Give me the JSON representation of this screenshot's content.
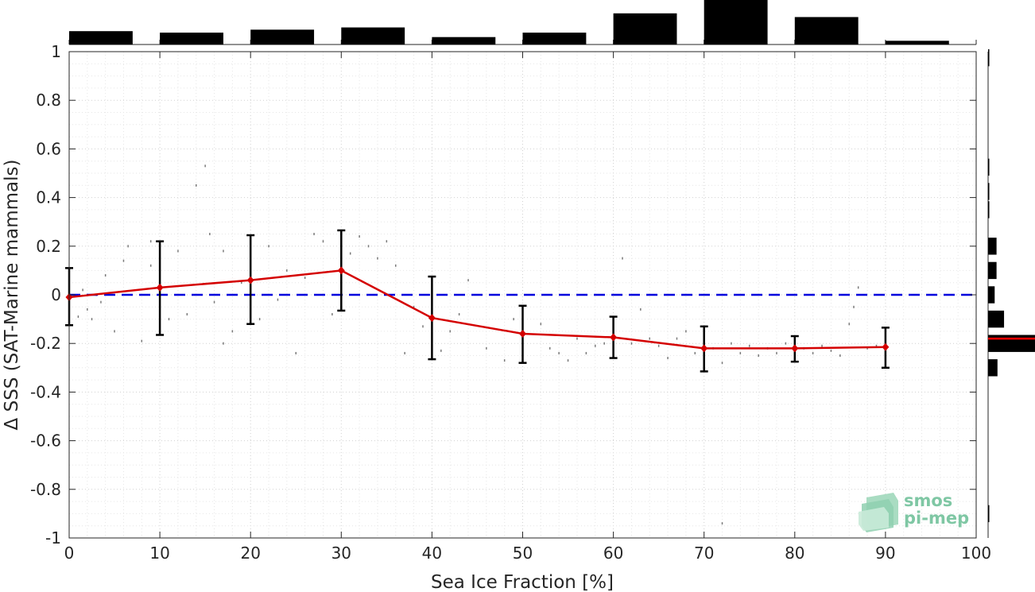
{
  "chart_data": {
    "type": "line",
    "xlabel": "Sea Ice Fraction [%]",
    "ylabel": "Δ SSS (SAT-Marine mammals)",
    "xlim": [
      0,
      100
    ],
    "ylim": [
      -1,
      1
    ],
    "x_ticks": [
      "0",
      "10",
      "20",
      "30",
      "40",
      "50",
      "60",
      "70",
      "80",
      "90",
      "100"
    ],
    "y_ticks": [
      "-1",
      "-0.8",
      "-0.6",
      "-0.4",
      "-0.2",
      "0",
      "0.2",
      "0.4",
      "0.6",
      "0.8",
      "1"
    ],
    "grid": true,
    "series": [
      {
        "x": [
          0,
          10,
          20,
          30,
          40,
          50,
          60,
          70,
          80,
          90
        ],
        "y": [
          -0.01,
          0.03,
          0.06,
          0.1,
          -0.095,
          -0.16,
          -0.175,
          -0.22,
          -0.22,
          -0.215
        ],
        "err_low": [
          -0.125,
          -0.165,
          -0.12,
          -0.065,
          -0.265,
          -0.28,
          -0.26,
          -0.315,
          -0.275,
          -0.3
        ],
        "err_high": [
          0.11,
          0.22,
          0.245,
          0.265,
          0.075,
          -0.045,
          -0.09,
          -0.13,
          -0.17,
          -0.135
        ],
        "color": "#d40000"
      }
    ],
    "reference_line": {
      "y": 0,
      "color": "#0000dd",
      "style": "dashed"
    },
    "top_histogram": {
      "bin_centers": [
        5,
        15,
        25,
        35,
        45,
        55,
        65,
        75,
        85,
        95
      ],
      "counts": [
        18,
        16,
        20,
        23,
        10,
        16,
        42,
        60,
        37,
        5
      ]
    },
    "right_histogram": {
      "bin_centers": [
        0.975,
        0.525,
        0.425,
        0.35,
        0.2,
        0.1,
        0.0,
        -0.1,
        -0.2,
        -0.3,
        -0.9
      ],
      "counts": [
        1,
        1,
        1,
        1,
        9,
        9,
        7,
        17,
        50,
        10,
        1
      ],
      "median_line": {
        "y": -0.18,
        "color": "#ff0000"
      }
    },
    "scatter_points": [
      [
        1,
        -0.09
      ],
      [
        1.5,
        0.02
      ],
      [
        2,
        -0.06
      ],
      [
        2.5,
        -0.1
      ],
      [
        3,
        0.0
      ],
      [
        3.5,
        -0.03
      ],
      [
        4,
        0.08
      ],
      [
        5,
        -0.15
      ],
      [
        6,
        0.14
      ],
      [
        6.5,
        0.2
      ],
      [
        8,
        -0.19
      ],
      [
        9,
        0.22
      ],
      [
        9,
        0.12
      ],
      [
        11,
        -0.1
      ],
      [
        12,
        0.18
      ],
      [
        13,
        -0.08
      ],
      [
        14,
        0.45
      ],
      [
        15,
        0.53
      ],
      [
        15.5,
        0.25
      ],
      [
        16,
        -0.03
      ],
      [
        17,
        -0.2
      ],
      [
        17,
        0.18
      ],
      [
        18,
        -0.15
      ],
      [
        19,
        0.05
      ],
      [
        21,
        -0.1
      ],
      [
        22,
        0.2
      ],
      [
        23,
        -0.02
      ],
      [
        24,
        0.1
      ],
      [
        25,
        -0.24
      ],
      [
        26,
        0.07
      ],
      [
        27,
        0.25
      ],
      [
        28,
        0.22
      ],
      [
        29,
        -0.08
      ],
      [
        31,
        0.17
      ],
      [
        32,
        0.24
      ],
      [
        33,
        0.2
      ],
      [
        34,
        0.15
      ],
      [
        35,
        0.22
      ],
      [
        36,
        0.12
      ],
      [
        37,
        -0.24
      ],
      [
        38,
        -0.05
      ],
      [
        39,
        -0.13
      ],
      [
        40,
        -0.2
      ],
      [
        41,
        -0.23
      ],
      [
        42,
        -0.15
      ],
      [
        43,
        -0.08
      ],
      [
        44,
        0.06
      ],
      [
        46,
        -0.22
      ],
      [
        48,
        -0.27
      ],
      [
        49,
        -0.1
      ],
      [
        52,
        -0.12
      ],
      [
        53,
        -0.22
      ],
      [
        54,
        -0.24
      ],
      [
        55,
        -0.27
      ],
      [
        56,
        -0.18
      ],
      [
        57,
        -0.24
      ],
      [
        58,
        -0.21
      ],
      [
        59,
        -0.2
      ],
      [
        61,
        0.15
      ],
      [
        62,
        -0.2
      ],
      [
        63,
        -0.06
      ],
      [
        64,
        -0.18
      ],
      [
        65,
        -0.21
      ],
      [
        66,
        -0.26
      ],
      [
        67,
        -0.18
      ],
      [
        68,
        -0.15
      ],
      [
        69,
        -0.24
      ],
      [
        71,
        -0.22
      ],
      [
        72,
        -0.28
      ],
      [
        73,
        -0.2
      ],
      [
        74,
        -0.24
      ],
      [
        75,
        -0.21
      ],
      [
        76,
        -0.25
      ],
      [
        77,
        -0.22
      ],
      [
        78,
        -0.24
      ],
      [
        79,
        -0.2
      ],
      [
        81,
        -0.22
      ],
      [
        82,
        -0.24
      ],
      [
        83,
        -0.21
      ],
      [
        84,
        -0.23
      ],
      [
        85,
        -0.25
      ],
      [
        86,
        -0.12
      ],
      [
        86.5,
        -0.05
      ],
      [
        87,
        0.03
      ],
      [
        88,
        -0.22
      ],
      [
        89,
        -0.21
      ],
      [
        72,
        -0.94
      ]
    ]
  },
  "logo": {
    "line1": "smos",
    "line2": "pi-mep"
  }
}
